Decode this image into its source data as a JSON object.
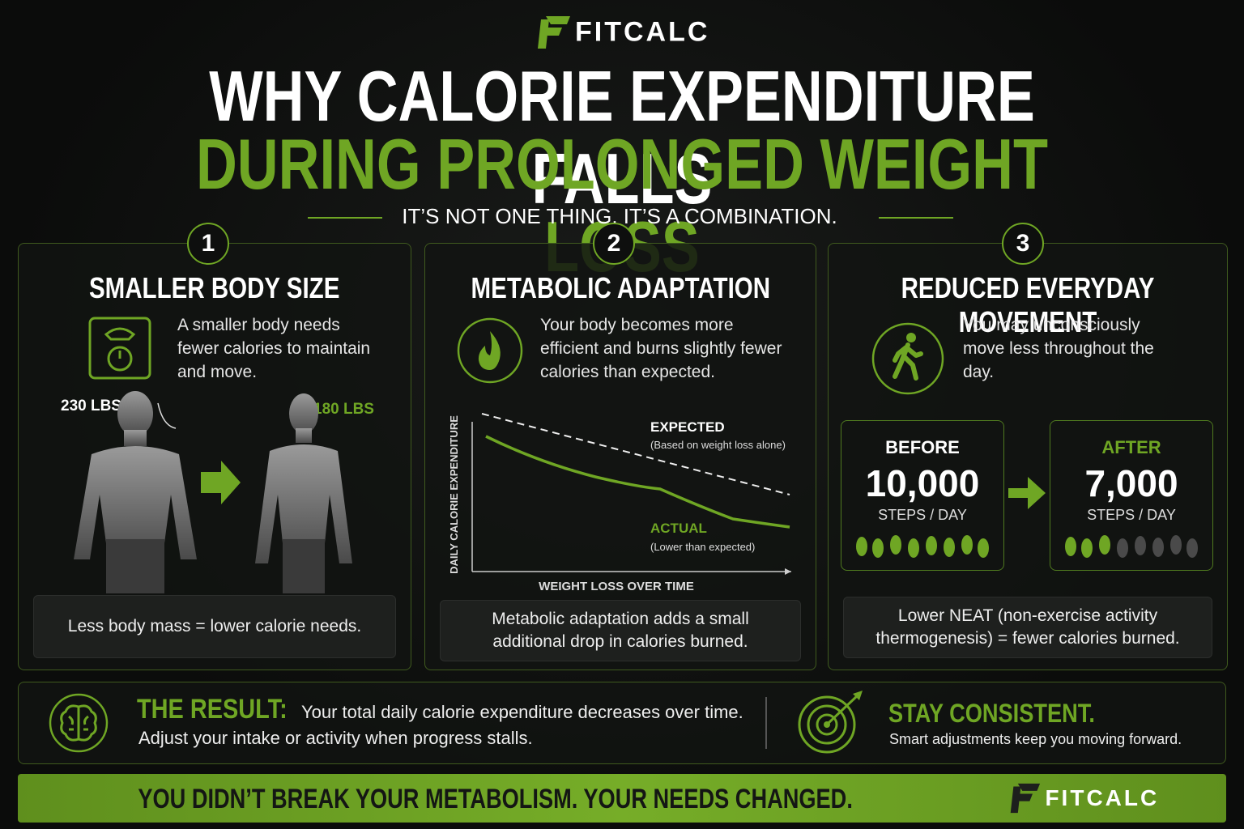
{
  "header": {
    "brand": "FITCALC",
    "title_line1": "WHY CALORIE EXPENDITURE FALLS",
    "title_line2": "DURING PROLONGED WEIGHT LOSS",
    "subtitle": "IT’S NOT ONE THING. IT’S A COMBINATION."
  },
  "panels": [
    {
      "number": "1",
      "title": "SMALLER BODY SIZE",
      "text": "A smaller body needs fewer calories to maintain and move.",
      "before_label": "230 LBS",
      "after_label": "180 LBS",
      "note": "Less body mass = lower calorie needs."
    },
    {
      "number": "2",
      "title": "METABOLIC ADAPTATION",
      "text": "Your body becomes more efficient and burns slightly fewer calories than expected.",
      "y_axis": "DAILY CALORIE EXPENDITURE",
      "x_axis": "WEIGHT LOSS OVER TIME",
      "expected": "EXPECTED",
      "expected_note": "(Based on weight loss alone)",
      "actual": "ACTUAL",
      "actual_note": "(Lower than expected)",
      "note": "Metabolic adaptation adds a small additional drop in calories burned."
    },
    {
      "number": "3",
      "title": "REDUCED EVERYDAY MOVEMENT",
      "text": "You may unconsciously move less throughout the day.",
      "before": {
        "label": "BEFORE",
        "steps": "10,000",
        "unit": "STEPS / DAY"
      },
      "after": {
        "label": "AFTER",
        "steps": "7,000",
        "unit": "STEPS / DAY"
      },
      "note": "Lower NEAT (non-exercise activity thermogenesis) = fewer calories burned."
    }
  ],
  "result": {
    "heading": "THE RESULT:",
    "text": "Your total daily calorie expenditure decreases over time.",
    "text2": "Adjust your intake or activity when progress stalls."
  },
  "consistent": {
    "heading": "STAY CONSISTENT.",
    "text": "Smart adjustments keep you moving forward."
  },
  "footer": {
    "banner": "YOU DIDN’T BREAK YOUR METABOLISM. YOUR NEEDS CHANGED.",
    "brand": "FITCALC"
  }
}
